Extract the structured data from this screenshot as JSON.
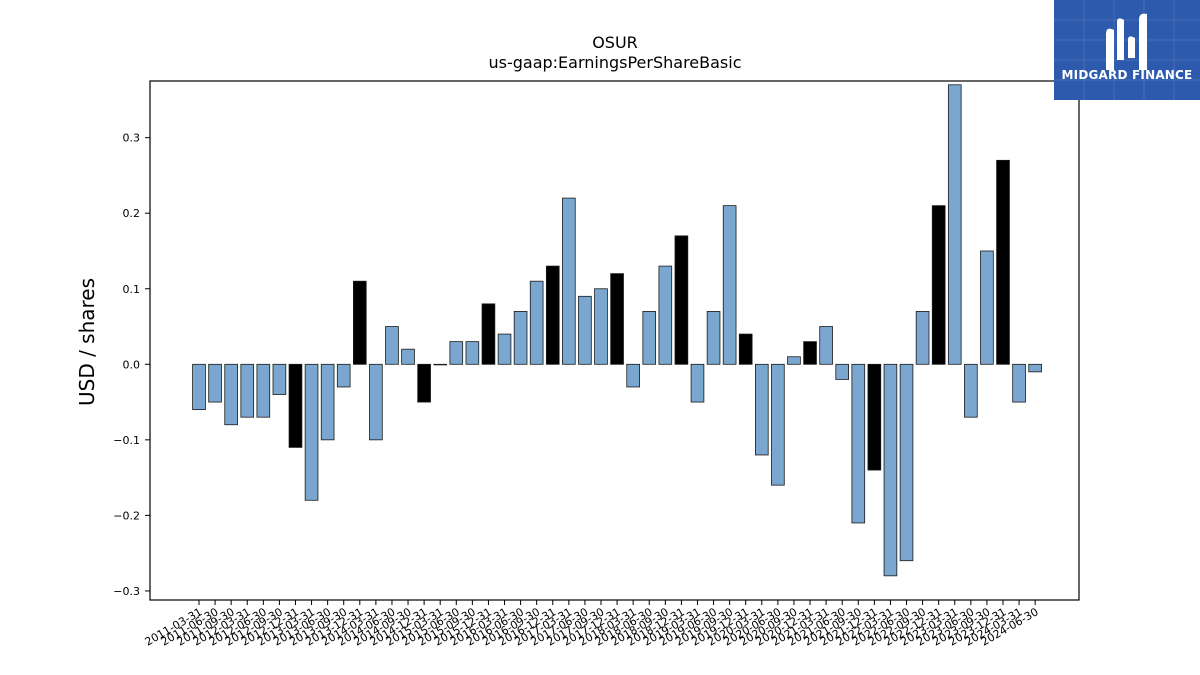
{
  "logo": {
    "text": "MIDGARD FINANCE",
    "icon": "midgard-m-logo",
    "bg_color": "#2d5aad"
  },
  "chart_data": {
    "type": "bar",
    "title": "OSUR",
    "subtitle": "us-gaap:EarningsPerShareBasic",
    "ylabel": "USD / shares",
    "xlabel": "",
    "ylim": [
      -0.312,
      0.375
    ],
    "yticks": [
      -0.3,
      -0.2,
      -0.1,
      0.0,
      0.1,
      0.2,
      0.3
    ],
    "ytick_labels": [
      "−0.3",
      "−0.2",
      "−0.1",
      "0.0",
      "0.1",
      "0.2",
      "0.3"
    ],
    "grid": false,
    "colors": {
      "quarterly": "#7ba6cf",
      "annual": "#000000",
      "edge": "#1a1a1a"
    },
    "categories": [
      "2011-03-31",
      "2011-06-30",
      "2011-09-30",
      "2012-03-31",
      "2012-06-30",
      "2012-09-30",
      "2012-12-31",
      "2013-03-31",
      "2013-06-30",
      "2013-09-30",
      "2013-12-31",
      "2014-03-31",
      "2014-06-30",
      "2014-09-30",
      "2014-12-31",
      "2015-03-31",
      "2015-06-30",
      "2015-09-30",
      "2015-12-31",
      "2016-03-31",
      "2016-06-30",
      "2016-09-30",
      "2016-12-31",
      "2017-03-31",
      "2017-06-30",
      "2017-09-30",
      "2017-12-31",
      "2018-03-31",
      "2018-06-30",
      "2018-09-30",
      "2018-12-31",
      "2019-03-31",
      "2019-06-30",
      "2019-09-30",
      "2019-12-31",
      "2020-03-31",
      "2020-06-30",
      "2020-09-30",
      "2020-12-31",
      "2021-03-31",
      "2021-06-30",
      "2021-09-30",
      "2021-12-31",
      "2022-03-31",
      "2022-06-30",
      "2022-09-30",
      "2022-12-31",
      "2023-03-31",
      "2023-06-30",
      "2023-09-30",
      "2023-12-31",
      "2024-03-31",
      "2024-06-30"
    ],
    "values": [
      -0.06,
      -0.05,
      -0.08,
      -0.07,
      -0.07,
      -0.04,
      -0.11,
      -0.18,
      -0.1,
      -0.03,
      0.11,
      -0.1,
      0.05,
      0.02,
      -0.05,
      0.0,
      0.03,
      0.03,
      0.08,
      0.04,
      0.07,
      0.11,
      0.13,
      0.22,
      0.09,
      0.1,
      0.12,
      -0.03,
      0.07,
      0.13,
      0.17,
      -0.05,
      0.07,
      0.21,
      0.04,
      -0.12,
      -0.16,
      0.01,
      0.03,
      0.05,
      -0.02,
      -0.21,
      -0.14,
      -0.28,
      -0.26,
      0.07,
      0.21,
      0.37,
      -0.07,
      0.15,
      0.27,
      -0.05,
      -0.01
    ],
    "annual": [
      false,
      false,
      false,
      false,
      false,
      false,
      true,
      false,
      false,
      false,
      true,
      false,
      false,
      false,
      true,
      false,
      false,
      false,
      true,
      false,
      false,
      false,
      true,
      false,
      false,
      false,
      true,
      false,
      false,
      false,
      true,
      false,
      false,
      false,
      true,
      false,
      false,
      false,
      true,
      false,
      false,
      false,
      true,
      false,
      false,
      false,
      true,
      false,
      false,
      false,
      true,
      false,
      false
    ]
  }
}
